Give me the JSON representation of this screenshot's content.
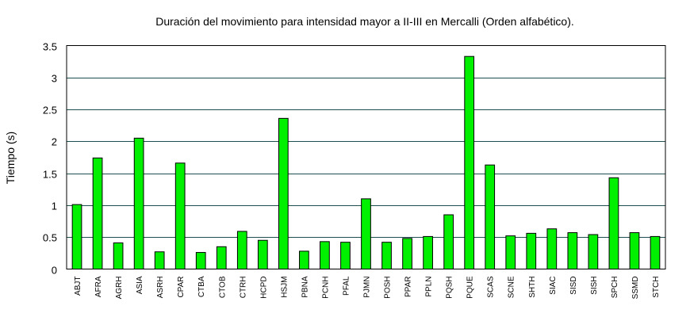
{
  "chart_data": {
    "type": "bar",
    "title": "Duración del movimiento para intensidad mayor a II-III en Mercalli (Orden alfabético).",
    "xlabel": "",
    "ylabel": "Tiempo (s)",
    "ylim": [
      0,
      3.5
    ],
    "yticks": [
      "0",
      "0.5",
      "1",
      "1.5",
      "2",
      "2.5",
      "3",
      "3.5"
    ],
    "grid": true,
    "bar_color": "#00f000",
    "grid_color": "#1f4f4f",
    "categories": [
      "ABJT",
      "AFRA",
      "AGRH",
      "ASIA",
      "ASRH",
      "CPAR",
      "CTBA",
      "CTOB",
      "CTRH",
      "HCPD",
      "HSJM",
      "PBNA",
      "PCNH",
      "PFAL",
      "PJMN",
      "POSH",
      "PPAR",
      "PPLN",
      "PQSH",
      "PQUE",
      "SCAS",
      "SCNE",
      "SHTH",
      "SIAC",
      "SISD",
      "SISH",
      "SPCH",
      "SSMD",
      "STCH"
    ],
    "values": [
      1.01,
      1.74,
      0.41,
      2.05,
      0.27,
      1.66,
      0.26,
      0.35,
      0.59,
      0.45,
      2.36,
      0.28,
      0.43,
      0.42,
      1.1,
      0.42,
      0.48,
      0.51,
      0.85,
      3.33,
      1.63,
      0.52,
      0.56,
      0.63,
      0.57,
      0.54,
      1.43,
      0.57,
      0.51
    ]
  }
}
